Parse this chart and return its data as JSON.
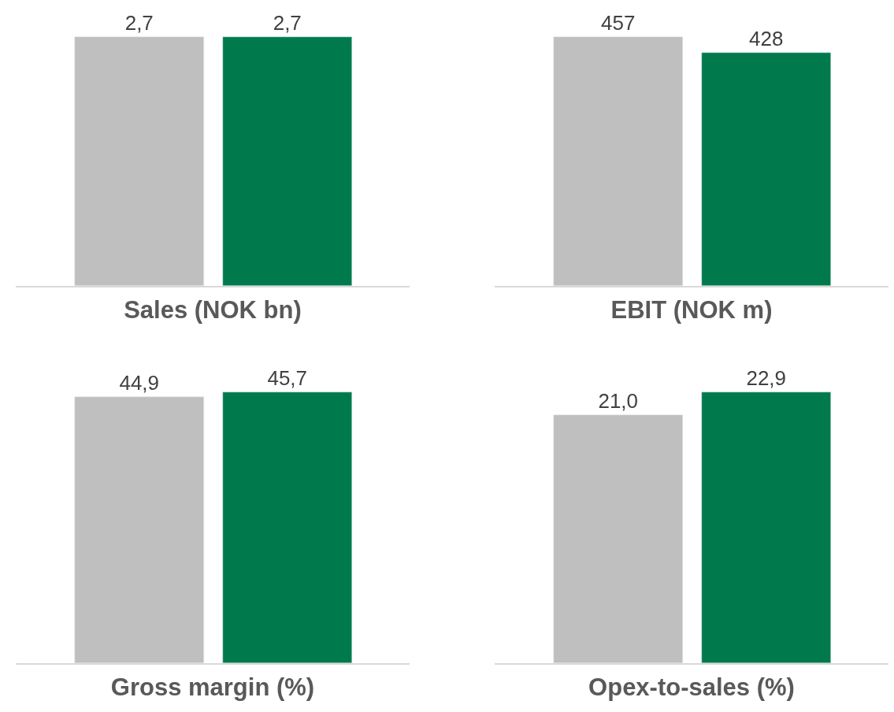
{
  "chart_data": [
    {
      "type": "bar",
      "xlabel": "Sales (NOK bn)",
      "categories": [
        null,
        null
      ],
      "values": [
        2.7,
        2.7
      ],
      "colors": [
        "#bfbfbf",
        "#007a4c"
      ],
      "value_labels": [
        "2,7",
        "2,7"
      ],
      "tick_labels": false
    },
    {
      "type": "bar",
      "xlabel": "EBIT (NOK m)",
      "categories": [
        null,
        null
      ],
      "values": [
        457,
        428
      ],
      "colors": [
        "#bfbfbf",
        "#007a4c"
      ],
      "value_labels": [
        "457",
        "428"
      ],
      "tick_labels": false
    },
    {
      "type": "bar",
      "xlabel": "Gross margin (%)",
      "categories": [
        null,
        null
      ],
      "values": [
        44.9,
        45.7
      ],
      "colors": [
        "#bfbfbf",
        "#007a4c"
      ],
      "value_labels": [
        "44,9",
        "45,7"
      ],
      "tick_labels": false
    },
    {
      "type": "bar",
      "xlabel": "Opex-to-sales (%)",
      "categories": [
        null,
        null
      ],
      "values": [
        21.0,
        22.9
      ],
      "colors": [
        "#bfbfbf",
        "#007a4c"
      ],
      "value_labels": [
        "21,0",
        "22,9"
      ],
      "tick_labels": false
    }
  ]
}
